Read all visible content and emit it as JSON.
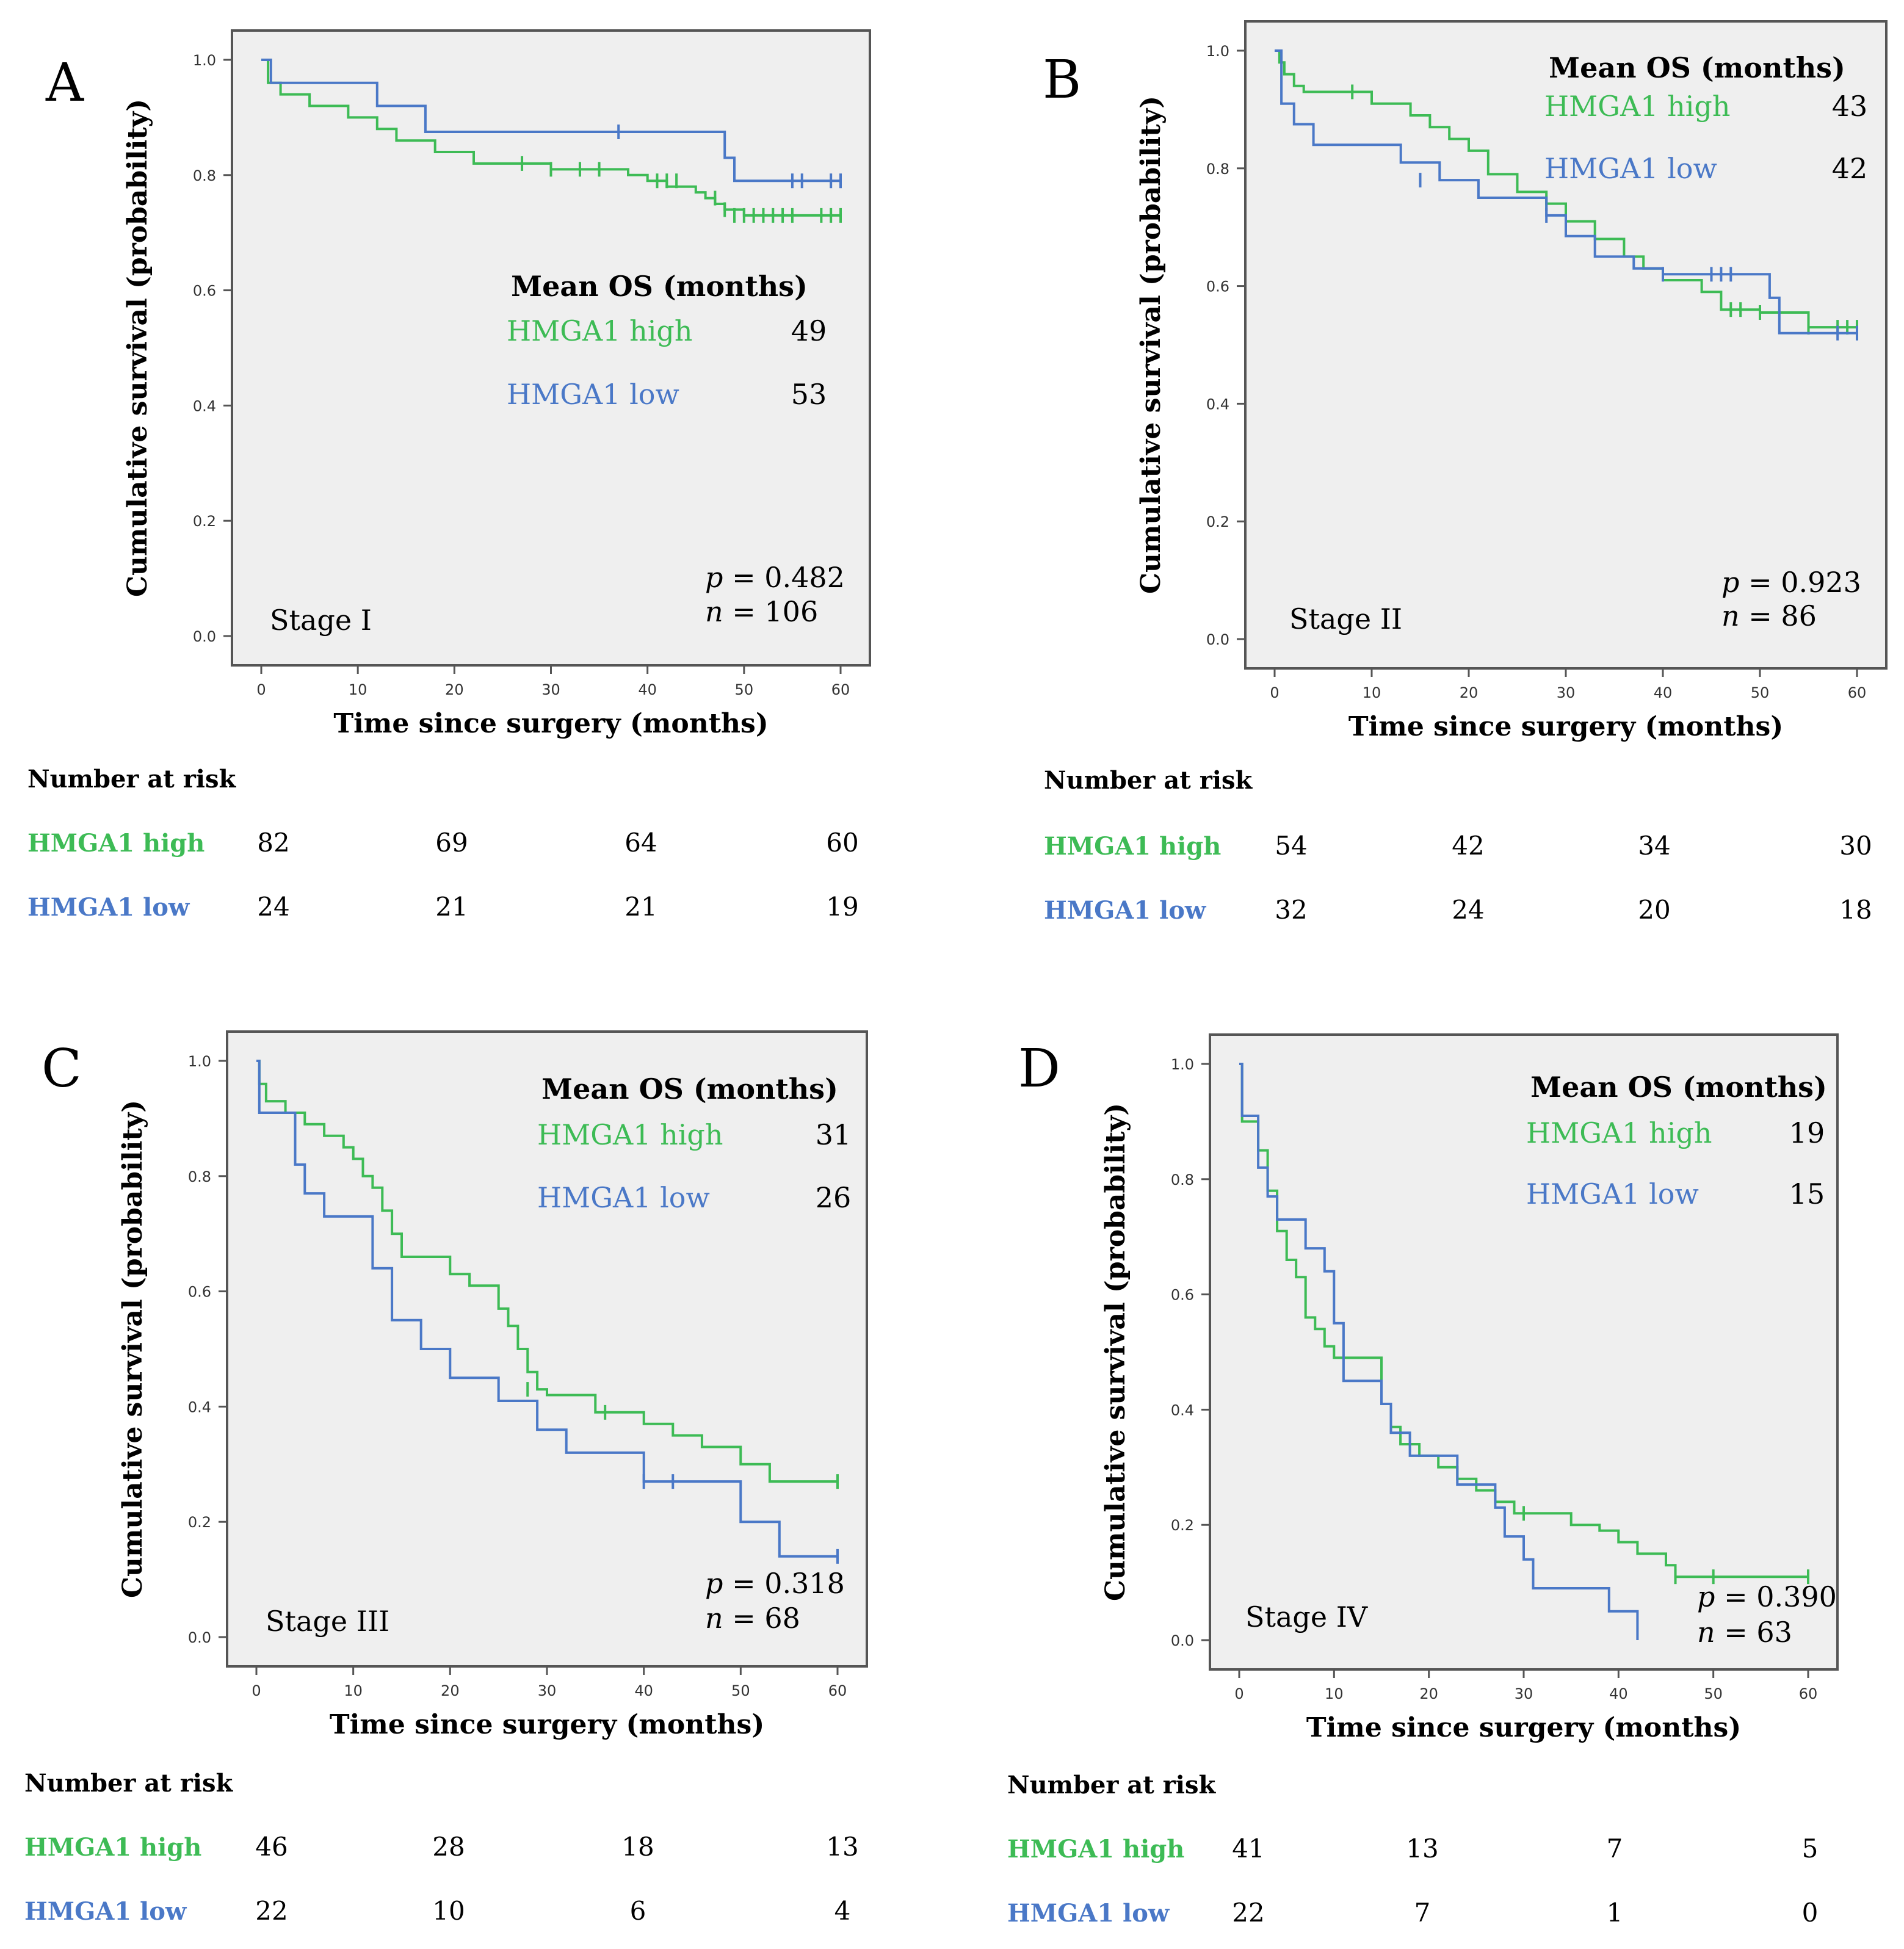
{
  "colors": {
    "high": "#3dbb55",
    "low": "#4a78c7",
    "plot_bg": "#efefef",
    "frame": "#555555"
  },
  "shared": {
    "xlabel": "Time since surgery (months)",
    "ylabel": "Cumulative survival (probability)",
    "mean_os_title": "Mean OS (months)",
    "high_label": "HMGA1 high",
    "low_label": "HMGA1 low",
    "risk_title": "Number at risk",
    "x_ticks": [
      "0",
      "10",
      "20",
      "30",
      "40",
      "50",
      "60"
    ],
    "y_ticks": [
      "0.0",
      "0.2",
      "0.4",
      "0.6",
      "0.8",
      "1.0"
    ]
  },
  "chart_data": [
    {
      "panel": "A",
      "type": "line",
      "subtype": "kaplan-meier",
      "stage": "Stage I",
      "xlim": [
        0,
        60
      ],
      "ylim": [
        0,
        1
      ],
      "mean_os": {
        "high": "49",
        "low": "53"
      },
      "p_value": "0.482",
      "n": "106",
      "p_text": "= 0.482",
      "n_text": "= 106",
      "legend_position": "middle-right",
      "series": [
        {
          "name": "HMGA1 high",
          "x": [
            0,
            0.7,
            2,
            5,
            9,
            12,
            14,
            18,
            22,
            26,
            28,
            30,
            35,
            38,
            40,
            42,
            45,
            46,
            47,
            48,
            50,
            55,
            60
          ],
          "y": [
            1.0,
            0.96,
            0.94,
            0.92,
            0.9,
            0.88,
            0.86,
            0.84,
            0.82,
            0.82,
            0.82,
            0.81,
            0.81,
            0.8,
            0.79,
            0.78,
            0.77,
            0.76,
            0.75,
            0.74,
            0.73,
            0.73,
            0.73
          ],
          "censored_x": [
            27,
            30,
            33,
            35,
            41,
            42,
            43,
            47,
            48,
            49,
            50,
            51,
            52,
            53,
            54,
            55,
            58,
            59,
            60
          ],
          "censored_y": [
            0.82,
            0.81,
            0.81,
            0.81,
            0.79,
            0.79,
            0.79,
            0.76,
            0.74,
            0.73,
            0.73,
            0.73,
            0.73,
            0.73,
            0.73,
            0.73,
            0.73,
            0.73,
            0.73
          ]
        },
        {
          "name": "HMGA1 low",
          "x": [
            0,
            1,
            12,
            17,
            48,
            49,
            60
          ],
          "y": [
            1.0,
            0.96,
            0.92,
            0.875,
            0.83,
            0.79,
            0.79
          ],
          "censored_x": [
            37,
            55,
            56,
            59,
            60
          ],
          "censored_y": [
            0.875,
            0.79,
            0.79,
            0.79,
            0.79
          ]
        }
      ],
      "risk_counts": {
        "high": [
          "82",
          "69",
          "64",
          "60"
        ],
        "low": [
          "24",
          "21",
          "21",
          "19"
        ]
      }
    },
    {
      "panel": "B",
      "type": "line",
      "subtype": "kaplan-meier",
      "stage": "Stage II",
      "xlim": [
        0,
        60
      ],
      "ylim": [
        0,
        1
      ],
      "mean_os": {
        "high": "43",
        "low": "42"
      },
      "p_value": "0.923",
      "n": "86",
      "p_text": "= 0.923",
      "n_text": "= 86",
      "legend_position": "top-right",
      "series": [
        {
          "name": "HMGA1 high",
          "x": [
            0,
            0.5,
            1,
            2,
            3,
            10,
            14,
            16,
            18,
            20,
            22,
            25,
            28,
            30,
            33,
            36,
            38,
            40,
            44,
            46,
            50,
            55,
            60
          ],
          "y": [
            1.0,
            0.98,
            0.96,
            0.94,
            0.93,
            0.91,
            0.89,
            0.87,
            0.85,
            0.83,
            0.79,
            0.76,
            0.74,
            0.71,
            0.68,
            0.65,
            0.63,
            0.61,
            0.59,
            0.56,
            0.555,
            0.53,
            0.53
          ],
          "censored_x": [
            8,
            28,
            47,
            48,
            50,
            55,
            58,
            59,
            60
          ],
          "censored_y": [
            0.93,
            0.74,
            0.56,
            0.56,
            0.555,
            0.53,
            0.53,
            0.53,
            0.53
          ]
        },
        {
          "name": "HMGA1 low",
          "x": [
            0,
            0.7,
            2,
            4,
            13,
            17,
            21,
            28,
            30,
            33,
            37,
            40,
            43,
            51,
            52,
            60
          ],
          "y": [
            1.0,
            0.91,
            0.875,
            0.84,
            0.81,
            0.78,
            0.75,
            0.72,
            0.685,
            0.65,
            0.63,
            0.62,
            0.62,
            0.58,
            0.52,
            0.52
          ],
          "censored_x": [
            15,
            28,
            40,
            45,
            46,
            47,
            58,
            60
          ],
          "censored_y": [
            0.78,
            0.72,
            0.62,
            0.62,
            0.62,
            0.62,
            0.52,
            0.52
          ]
        }
      ],
      "risk_counts": {
        "high": [
          "54",
          "42",
          "34",
          "30"
        ],
        "low": [
          "32",
          "24",
          "20",
          "18"
        ]
      }
    },
    {
      "panel": "C",
      "type": "line",
      "subtype": "kaplan-meier",
      "stage": "Stage III",
      "xlim": [
        0,
        60
      ],
      "ylim": [
        0,
        1
      ],
      "mean_os": {
        "high": "31",
        "low": "26"
      },
      "p_value": "0.318",
      "n": "68",
      "p_text": "= 0.318",
      "n_text": "= 68",
      "legend_position": "top-right",
      "series": [
        {
          "name": "HMGA1 high",
          "x": [
            0,
            0.3,
            1,
            3,
            5,
            7,
            9,
            10,
            11,
            12,
            13,
            14,
            15,
            20,
            22,
            25,
            26,
            27,
            28,
            29,
            30,
            35,
            40,
            43,
            46,
            50,
            53,
            60
          ],
          "y": [
            1.0,
            0.96,
            0.93,
            0.91,
            0.89,
            0.87,
            0.85,
            0.83,
            0.8,
            0.78,
            0.74,
            0.7,
            0.66,
            0.63,
            0.61,
            0.57,
            0.54,
            0.5,
            0.46,
            0.43,
            0.42,
            0.39,
            0.37,
            0.35,
            0.33,
            0.3,
            0.27,
            0.27
          ],
          "censored_x": [
            28,
            36,
            60
          ],
          "censored_y": [
            0.43,
            0.39,
            0.27
          ]
        },
        {
          "name": "HMGA1 low",
          "x": [
            0,
            0.3,
            4,
            5,
            7,
            12,
            14,
            17,
            20,
            25,
            29,
            32,
            40,
            50,
            54,
            60
          ],
          "y": [
            1.0,
            0.91,
            0.82,
            0.77,
            0.73,
            0.64,
            0.55,
            0.5,
            0.45,
            0.41,
            0.36,
            0.32,
            0.27,
            0.2,
            0.14,
            0.14
          ],
          "censored_x": [
            40,
            43,
            60
          ],
          "censored_y": [
            0.27,
            0.27,
            0.14
          ]
        }
      ],
      "risk_counts": {
        "high": [
          "46",
          "28",
          "18",
          "13"
        ],
        "low": [
          "22",
          "10",
          "6",
          "4"
        ]
      }
    },
    {
      "panel": "D",
      "type": "line",
      "subtype": "kaplan-meier",
      "stage": "Stage IV",
      "xlim": [
        0,
        60
      ],
      "ylim": [
        0,
        1
      ],
      "mean_os": {
        "high": "19",
        "low": "15"
      },
      "p_value": "0.390",
      "n": "63",
      "p_text": "= 0.390",
      "n_text": "= 63",
      "legend_position": "top-right",
      "series": [
        {
          "name": "HMGA1 high",
          "x": [
            0,
            0.3,
            2,
            3,
            4,
            5,
            6,
            7,
            8,
            9,
            10,
            12,
            15,
            16,
            17,
            19,
            21,
            23,
            25,
            27,
            29,
            33,
            35,
            38,
            40,
            42,
            45,
            46,
            60
          ],
          "y": [
            1.0,
            0.9,
            0.85,
            0.78,
            0.71,
            0.66,
            0.63,
            0.56,
            0.54,
            0.51,
            0.49,
            0.49,
            0.41,
            0.37,
            0.34,
            0.32,
            0.3,
            0.28,
            0.26,
            0.24,
            0.22,
            0.22,
            0.2,
            0.19,
            0.17,
            0.15,
            0.13,
            0.11,
            0.11
          ],
          "censored_x": [
            30,
            46,
            50,
            60
          ],
          "censored_y": [
            0.22,
            0.11,
            0.11,
            0.11
          ]
        },
        {
          "name": "HMGA1 low",
          "x": [
            0,
            0.3,
            2,
            3,
            4,
            5,
            7,
            9,
            10,
            11,
            15,
            16,
            18,
            20,
            23,
            25,
            27,
            28,
            30,
            31,
            33,
            35,
            39,
            42
          ],
          "y": [
            1.0,
            0.91,
            0.82,
            0.77,
            0.73,
            0.73,
            0.68,
            0.64,
            0.55,
            0.45,
            0.41,
            0.36,
            0.32,
            0.32,
            0.27,
            0.27,
            0.23,
            0.18,
            0.14,
            0.09,
            0.09,
            0.09,
            0.05,
            0.0
          ],
          "censored_x": [],
          "censored_y": []
        }
      ],
      "risk_counts": {
        "high": [
          "41",
          "13",
          "7",
          "5"
        ],
        "low": [
          "22",
          "7",
          "1",
          "0"
        ]
      }
    }
  ]
}
